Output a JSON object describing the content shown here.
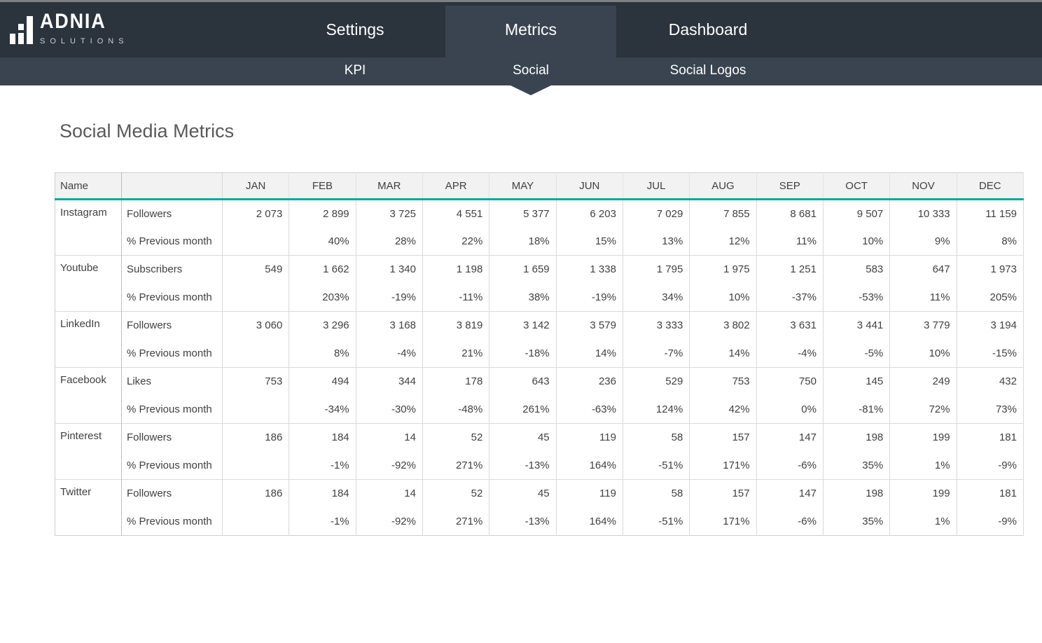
{
  "brand": {
    "name": "ADNIA",
    "tagline": "SOLUTIONS"
  },
  "nav": {
    "tabs": [
      {
        "label": "Settings",
        "active": false
      },
      {
        "label": "Metrics",
        "active": true
      },
      {
        "label": "Dashboard",
        "active": false
      }
    ]
  },
  "subnav": {
    "items": [
      {
        "label": "KPI",
        "active": false
      },
      {
        "label": "Social",
        "active": true
      },
      {
        "label": "Social Logos",
        "active": false
      }
    ]
  },
  "page": {
    "title": "Social Media Metrics"
  },
  "colors": {
    "navbar": "#2b333d",
    "active_tab": "#3a4450",
    "accent_teal": "#00a99d",
    "header_bg": "#f2f2f2",
    "text": "#404040"
  },
  "table": {
    "name_header": "Name",
    "pct_label": "% Previous month",
    "months": [
      "JAN",
      "FEB",
      "MAR",
      "APR",
      "MAY",
      "JUN",
      "JUL",
      "AUG",
      "SEP",
      "OCT",
      "NOV",
      "DEC"
    ],
    "rows": [
      {
        "name": "Instagram",
        "metric": "Followers",
        "values": [
          "2 073",
          "2 899",
          "3 725",
          "4 551",
          "5 377",
          "6 203",
          "7 029",
          "7 855",
          "8 681",
          "9 507",
          "10 333",
          "11 159"
        ],
        "pct": [
          "",
          "40%",
          "28%",
          "22%",
          "18%",
          "15%",
          "13%",
          "12%",
          "11%",
          "10%",
          "9%",
          "8%"
        ]
      },
      {
        "name": "Youtube",
        "metric": "Subscribers",
        "values": [
          "549",
          "1 662",
          "1 340",
          "1 198",
          "1 659",
          "1 338",
          "1 795",
          "1 975",
          "1 251",
          "583",
          "647",
          "1 973"
        ],
        "pct": [
          "",
          "203%",
          "-19%",
          "-11%",
          "38%",
          "-19%",
          "34%",
          "10%",
          "-37%",
          "-53%",
          "11%",
          "205%"
        ]
      },
      {
        "name": "LinkedIn",
        "metric": "Followers",
        "values": [
          "3 060",
          "3 296",
          "3 168",
          "3 819",
          "3 142",
          "3 579",
          "3 333",
          "3 802",
          "3 631",
          "3 441",
          "3 779",
          "3 194"
        ],
        "pct": [
          "",
          "8%",
          "-4%",
          "21%",
          "-18%",
          "14%",
          "-7%",
          "14%",
          "-4%",
          "-5%",
          "10%",
          "-15%"
        ]
      },
      {
        "name": "Facebook",
        "metric": "Likes",
        "values": [
          "753",
          "494",
          "344",
          "178",
          "643",
          "236",
          "529",
          "753",
          "750",
          "145",
          "249",
          "432"
        ],
        "pct": [
          "",
          "-34%",
          "-30%",
          "-48%",
          "261%",
          "-63%",
          "124%",
          "42%",
          "0%",
          "-81%",
          "72%",
          "73%"
        ]
      },
      {
        "name": "Pinterest",
        "metric": "Followers",
        "values": [
          "186",
          "184",
          "14",
          "52",
          "45",
          "119",
          "58",
          "157",
          "147",
          "198",
          "199",
          "181"
        ],
        "pct": [
          "",
          "-1%",
          "-92%",
          "271%",
          "-13%",
          "164%",
          "-51%",
          "171%",
          "-6%",
          "35%",
          "1%",
          "-9%"
        ]
      },
      {
        "name": "Twitter",
        "metric": "Followers",
        "values": [
          "186",
          "184",
          "14",
          "52",
          "45",
          "119",
          "58",
          "157",
          "147",
          "198",
          "199",
          "181"
        ],
        "pct": [
          "",
          "-1%",
          "-92%",
          "271%",
          "-13%",
          "164%",
          "-51%",
          "171%",
          "-6%",
          "35%",
          "1%",
          "-9%"
        ]
      }
    ]
  }
}
